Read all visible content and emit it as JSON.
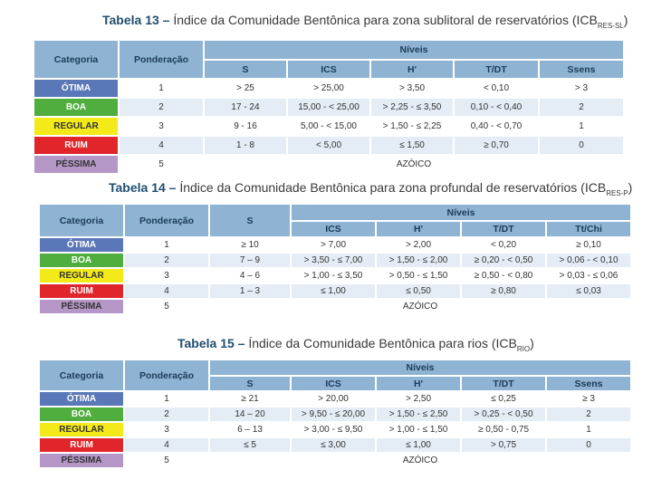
{
  "tables": [
    {
      "title_bold": "Tabela 13 –",
      "title_text": " Índice da Comunidade Bentônica para zona sublitoral de reservatórios (ICB",
      "title_sub": "RES-SL",
      "title_end": ")",
      "headers": {
        "categoria": "Categoria",
        "ponderacao": "Ponderação",
        "niveis": "Níveis",
        "cols": [
          "S",
          "ICS",
          "H'",
          "T/DT",
          "Ssens"
        ]
      },
      "rows": [
        {
          "cat": "ÓTIMA",
          "pond": "1",
          "vals": [
            "> 25",
            "> 25,00",
            "> 3,50",
            "< 0,10",
            "> 3"
          ]
        },
        {
          "cat": "BOA",
          "pond": "2",
          "vals": [
            "17 - 24",
            "15,00 - < 25,00",
            "> 2,25 - ≤ 3,50",
            "0,10 - < 0,40",
            "2"
          ]
        },
        {
          "cat": "REGULAR",
          "pond": "3",
          "vals": [
            "9 - 16",
            "5,00 - < 15,00",
            "> 1,50 - ≤ 2,25",
            "0,40 - < 0,70",
            "1"
          ]
        },
        {
          "cat": "RUIM",
          "pond": "4",
          "vals": [
            "1 - 8",
            "< 5,00",
            "≤ 1,50",
            "≥ 0,70",
            "0"
          ]
        },
        {
          "cat": "PÉSSIMA",
          "pond": "5",
          "azoico": "AZÓICO"
        }
      ]
    },
    {
      "title_bold": "Tabela 14 –",
      "title_text": " Índice da Comunidade Bentônica para zona profundal de reservatórios (ICB",
      "title_sub": "RES-P",
      "title_end": ")",
      "headers": {
        "categoria": "Categoria",
        "ponderacao": "Ponderação",
        "s": "S",
        "niveis": "Níveis",
        "cols": [
          "ICS",
          "H'",
          "T/DT",
          "Tt/Chi"
        ]
      },
      "rows": [
        {
          "cat": "ÓTIMA",
          "pond": "1",
          "s": "≥ 10",
          "vals": [
            "> 7,00",
            "> 2,00",
            "< 0,20",
            "≥ 0,10"
          ]
        },
        {
          "cat": "BOA",
          "pond": "2",
          "s": "7 – 9",
          "vals": [
            "> 3,50 - ≤ 7,00",
            "> 1,50 - ≤ 2,00",
            "≥ 0,20 - < 0,50",
            "> 0,06 - < 0,10"
          ]
        },
        {
          "cat": "REGULAR",
          "pond": "3",
          "s": "4 – 6",
          "vals": [
            "> 1,00 - ≤ 3,50",
            "> 0,50 - ≤ 1,50",
            "≥ 0,50 - < 0,80",
            "> 0,03 - ≤ 0,06"
          ]
        },
        {
          "cat": "RUIM",
          "pond": "4",
          "s": "1 – 3",
          "vals": [
            "≤ 1,00",
            "≤ 0,50",
            "≥ 0,80",
            "≤ 0,03"
          ]
        },
        {
          "cat": "PÉSSIMA",
          "pond": "5",
          "azoico": "AZÓICO"
        }
      ]
    },
    {
      "title_bold": "Tabela 15 –",
      "title_text": " Índice da Comunidade Bentônica para rios (ICB",
      "title_sub": "RIO",
      "title_end": ")",
      "headers": {
        "categoria": "Categoria",
        "ponderacao": "Ponderação",
        "niveis": "Níveis",
        "cols": [
          "S",
          "ICS",
          "H'",
          "T/DT",
          "Ssens"
        ]
      },
      "rows": [
        {
          "cat": "ÓTIMA",
          "pond": "1",
          "vals": [
            "≥ 21",
            "> 20,00",
            "> 2,50",
            "≤ 0,25",
            "≥ 3"
          ]
        },
        {
          "cat": "BOA",
          "pond": "2",
          "vals": [
            "14 – 20",
            "> 9,50 - ≤ 20,00",
            "> 1,50 - ≤ 2,50",
            "> 0,25 - < 0,50",
            "2"
          ]
        },
        {
          "cat": "REGULAR",
          "pond": "3",
          "vals": [
            "6 – 13",
            "> 3,00 - ≤ 9,50",
            "> 1,00 - ≤ 1,50",
            "≥ 0,50 - 0,75",
            "1"
          ]
        },
        {
          "cat": "RUIM",
          "pond": "4",
          "vals": [
            "≤ 5",
            "≤ 3,00",
            "≤ 1,00",
            "> 0,75",
            "0"
          ]
        },
        {
          "cat": "PÉSSIMA",
          "pond": "5",
          "azoico": "AZÓICO"
        }
      ]
    }
  ]
}
